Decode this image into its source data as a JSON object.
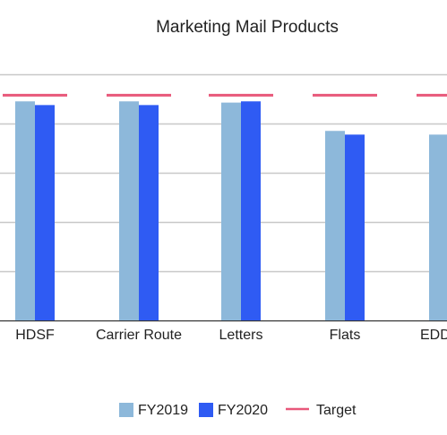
{
  "chart_data": {
    "type": "bar",
    "title": "Marketing Mail Products",
    "categories": [
      "HDSF",
      "Carrier Route",
      "Letters",
      "Flats",
      "EDDM-R"
    ],
    "visible_category_labels": [
      "HDSF",
      "Carrier Route",
      "Letters",
      "Flats",
      "EDDM-R"
    ],
    "series": [
      {
        "name": "FY2019",
        "values": [
          89,
          89,
          88.5,
          77,
          75.5
        ],
        "color": "#8db8da"
      },
      {
        "name": "FY2020",
        "values": [
          87.5,
          87.5,
          89,
          75.5,
          null
        ],
        "color": "#2f5bf3"
      }
    ],
    "target": {
      "name": "Target",
      "values": [
        91.5,
        91.5,
        91.5,
        91.5,
        91.5
      ],
      "color": "#e8587a"
    },
    "ylim": [
      0,
      100
    ],
    "ytick_values": [
      0,
      20,
      40,
      60,
      80,
      100
    ],
    "grid": true,
    "legend_position": "bottom"
  }
}
